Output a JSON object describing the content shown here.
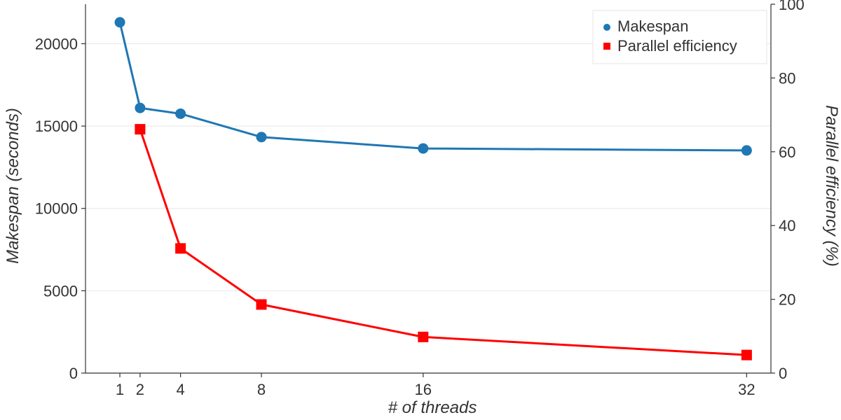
{
  "chart_data": {
    "type": "line",
    "xlabel": "# of threads",
    "ylabel_left": "Makespan (seconds)",
    "ylabel_right": "Parallel efficiency (%)",
    "x": [
      1,
      2,
      4,
      8,
      16,
      32
    ],
    "x_tick_labels": [
      "1",
      "2",
      "4",
      "8",
      "16",
      "32"
    ],
    "xlim": [
      -0.7,
      33.2
    ],
    "ylim_left": [
      0,
      22400
    ],
    "ylim_right": [
      0,
      100
    ],
    "left_ticks": [
      0,
      5000,
      10000,
      15000,
      20000
    ],
    "right_ticks": [
      0,
      20,
      40,
      60,
      80,
      100
    ],
    "grid": true,
    "legend_position": "top-right",
    "series": [
      {
        "name": "Makespan",
        "axis": "left",
        "marker": "circle",
        "color": "#1f77b4",
        "x": [
          1,
          2,
          4,
          8,
          16,
          32
        ],
        "values": [
          21300,
          16100,
          15750,
          14330,
          13640,
          13520
        ]
      },
      {
        "name": "Parallel efficiency",
        "axis": "right",
        "marker": "square",
        "color": "#ff0000",
        "x": [
          2,
          4,
          8,
          16,
          32
        ],
        "values": [
          66.1,
          33.8,
          18.6,
          9.8,
          4.9
        ]
      }
    ]
  }
}
